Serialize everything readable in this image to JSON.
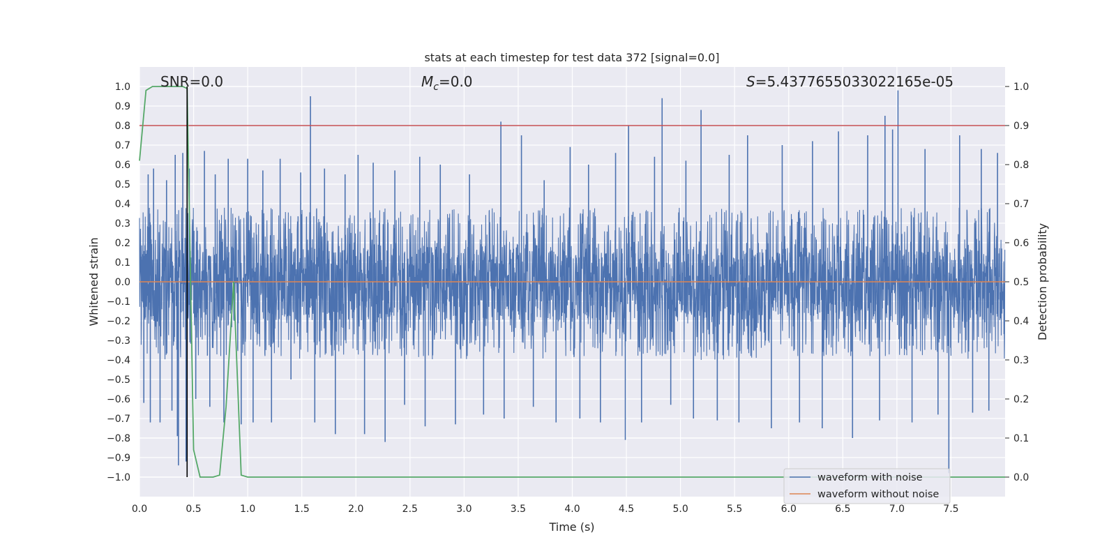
{
  "chart_data": {
    "type": "line",
    "title": "stats at each timestep for test data 372 [signal=0.0]",
    "xlabel": "Time (s)",
    "ylabel": "Whitened strain",
    "y2label": "Detection probability",
    "xlim": [
      0.0,
      8.0
    ],
    "ylim": [
      -1.1,
      1.1
    ],
    "y2lim": [
      -0.05,
      1.05
    ],
    "xticks": [
      "0.0",
      "0.5",
      "1.0",
      "1.5",
      "2.0",
      "2.5",
      "3.0",
      "3.5",
      "4.0",
      "4.5",
      "5.0",
      "5.5",
      "6.0",
      "6.5",
      "7.0",
      "7.5"
    ],
    "yticks": [
      "1.0",
      "0.9",
      "0.8",
      "0.7",
      "0.6",
      "0.5",
      "0.4",
      "0.3",
      "0.2",
      "0.1",
      "0.0",
      "-0.1",
      "-0.2",
      "-0.3",
      "-0.4",
      "-0.5",
      "-0.6",
      "-0.7",
      "-0.8",
      "-0.9",
      "-1.0"
    ],
    "y2ticks": [
      "1.0",
      "0.9",
      "0.8",
      "0.7",
      "0.6",
      "0.5",
      "0.4",
      "0.3",
      "0.2",
      "0.1",
      "0.0"
    ],
    "grid": true,
    "legend_position": "lower-right",
    "annotations": {
      "snr": "SNR=0.0",
      "mc_symbol": "M",
      "mc_sub": "c",
      "mc_rest": "=0.0",
      "s_symbol": "S",
      "s_rest": "=5.4377655033022165e-05"
    },
    "threshold_y2": 0.9,
    "marker_x": 0.44,
    "series": [
      {
        "name": "waveform with noise",
        "color": "#4c72b0",
        "axis": "left",
        "band": [
          -0.4,
          0.38
        ],
        "dense_band": [
          -0.2,
          0.18
        ],
        "spikes": [
          [
            0.04,
            -0.62
          ],
          [
            0.08,
            0.55
          ],
          [
            0.1,
            -0.72
          ],
          [
            0.13,
            0.58
          ],
          [
            0.19,
            -0.72
          ],
          [
            0.25,
            0.52
          ],
          [
            0.3,
            -0.66
          ],
          [
            0.33,
            0.65
          ],
          [
            0.35,
            -0.79
          ],
          [
            0.36,
            -0.94
          ],
          [
            0.4,
            0.66
          ],
          [
            0.43,
            -0.92
          ],
          [
            0.46,
            0.58
          ],
          [
            0.52,
            -0.6
          ],
          [
            0.6,
            0.67
          ],
          [
            0.65,
            -0.64
          ],
          [
            0.7,
            0.55
          ],
          [
            0.78,
            -0.72
          ],
          [
            0.82,
            0.63
          ],
          [
            0.94,
            -0.73
          ],
          [
            1.0,
            0.63
          ],
          [
            1.05,
            -0.72
          ],
          [
            1.14,
            0.57
          ],
          [
            1.22,
            -0.72
          ],
          [
            1.3,
            0.63
          ],
          [
            1.4,
            -0.5
          ],
          [
            1.49,
            0.56
          ],
          [
            1.58,
            0.95
          ],
          [
            1.62,
            -0.72
          ],
          [
            1.71,
            0.58
          ],
          [
            1.81,
            -0.78
          ],
          [
            1.9,
            0.55
          ],
          [
            2.02,
            0.65
          ],
          [
            2.08,
            -0.78
          ],
          [
            2.16,
            0.61
          ],
          [
            2.27,
            -0.82
          ],
          [
            2.36,
            0.57
          ],
          [
            2.45,
            -0.63
          ],
          [
            2.59,
            0.64
          ],
          [
            2.64,
            -0.74
          ],
          [
            2.78,
            0.6
          ],
          [
            2.92,
            -0.73
          ],
          [
            3.05,
            0.55
          ],
          [
            3.18,
            -0.68
          ],
          [
            3.34,
            0.82
          ],
          [
            3.37,
            -0.7
          ],
          [
            3.53,
            0.75
          ],
          [
            3.64,
            -0.64
          ],
          [
            3.74,
            0.52
          ],
          [
            3.85,
            -0.72
          ],
          [
            3.98,
            0.69
          ],
          [
            4.07,
            -0.7
          ],
          [
            4.15,
            0.6
          ],
          [
            4.26,
            -0.72
          ],
          [
            4.4,
            0.66
          ],
          [
            4.49,
            -0.81
          ],
          [
            4.52,
            0.8
          ],
          [
            4.64,
            -0.72
          ],
          [
            4.76,
            0.64
          ],
          [
            4.83,
            0.94
          ],
          [
            4.91,
            -0.63
          ],
          [
            5.05,
            0.62
          ],
          [
            5.12,
            -0.7
          ],
          [
            5.19,
            0.88
          ],
          [
            5.34,
            -0.71
          ],
          [
            5.45,
            0.65
          ],
          [
            5.54,
            -0.72
          ],
          [
            5.62,
            0.75
          ],
          [
            5.84,
            -0.75
          ],
          [
            5.94,
            0.7
          ],
          [
            6.1,
            -0.72
          ],
          [
            6.22,
            0.72
          ],
          [
            6.31,
            -0.75
          ],
          [
            6.46,
            0.77
          ],
          [
            6.59,
            -0.8
          ],
          [
            6.73,
            0.75
          ],
          [
            6.84,
            -0.71
          ],
          [
            6.89,
            0.85
          ],
          [
            6.96,
            0.78
          ],
          [
            7.01,
            0.98
          ],
          [
            7.14,
            -0.72
          ],
          [
            7.26,
            0.68
          ],
          [
            7.38,
            -0.68
          ],
          [
            7.48,
            -0.98
          ],
          [
            7.58,
            0.75
          ],
          [
            7.7,
            -0.67
          ],
          [
            7.78,
            0.68
          ],
          [
            7.85,
            -0.66
          ],
          [
            7.93,
            0.66
          ]
        ]
      },
      {
        "name": "waveform without noise",
        "color": "#dd8452",
        "axis": "left",
        "x": [
          0.0,
          8.0
        ],
        "y": [
          0.0,
          0.0
        ]
      },
      {
        "name": "",
        "color": "#55a868",
        "axis": "right",
        "x": [
          0.0,
          0.06,
          0.12,
          0.18,
          0.24,
          0.3,
          0.36,
          0.4,
          0.44,
          0.5,
          0.56,
          0.62,
          0.68,
          0.74,
          0.8,
          0.87,
          0.94,
          1.0,
          8.0
        ],
        "y": [
          0.81,
          0.99,
          1.0,
          1.0,
          1.0,
          1.0,
          1.0,
          1.0,
          0.995,
          0.07,
          0.0,
          0.0,
          0.0,
          0.005,
          0.18,
          0.5,
          0.005,
          0.0,
          0.0
        ]
      }
    ]
  }
}
